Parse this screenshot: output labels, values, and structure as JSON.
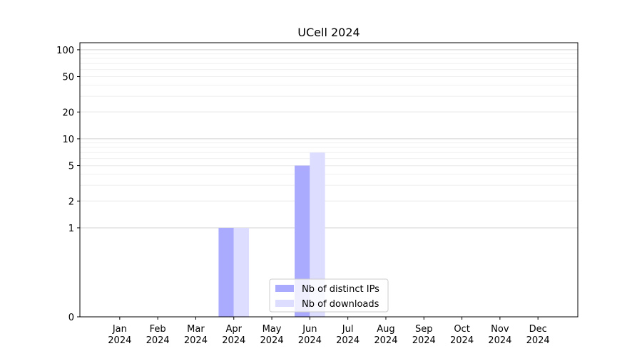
{
  "chart_data": {
    "type": "bar",
    "title": "UCell 2024",
    "xlabel": "",
    "ylabel": "",
    "y_scale": "symlog",
    "ylim": [
      0,
      120
    ],
    "y_ticks": [
      0,
      1,
      2,
      5,
      10,
      20,
      50,
      100
    ],
    "grid": "horizontal",
    "legend_position": "bottom-center",
    "categories": [
      [
        "Jan",
        "2024"
      ],
      [
        "Feb",
        "2024"
      ],
      [
        "Mar",
        "2024"
      ],
      [
        "Apr",
        "2024"
      ],
      [
        "May",
        "2024"
      ],
      [
        "Jun",
        "2024"
      ],
      [
        "Jul",
        "2024"
      ],
      [
        "Aug",
        "2024"
      ],
      [
        "Sep",
        "2024"
      ],
      [
        "Oct",
        "2024"
      ],
      [
        "Nov",
        "2024"
      ],
      [
        "Dec",
        "2024"
      ]
    ],
    "series": [
      {
        "name": "Nb of distinct IPs",
        "color": "#aaaaff",
        "values": [
          0,
          0,
          0,
          1,
          0,
          5,
          0,
          0,
          0,
          0,
          0,
          0
        ]
      },
      {
        "name": "Nb of downloads",
        "color": "#ddddff",
        "values": [
          0,
          0,
          0,
          1,
          0,
          7,
          0,
          0,
          0,
          0,
          0,
          0
        ]
      }
    ]
  }
}
